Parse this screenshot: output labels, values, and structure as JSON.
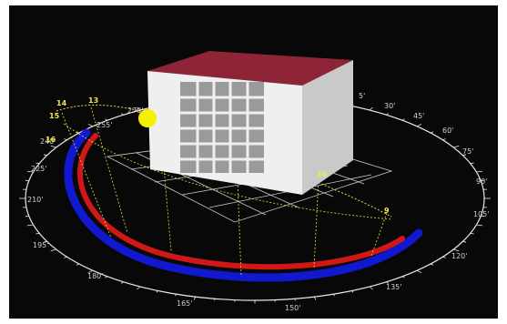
{
  "viewport": {
    "background": "#080808",
    "ring_color": "#e8e8e8",
    "path_color": "#e8e03a",
    "sun_color": "#f4f000",
    "outer_band_color": "#1018d0",
    "inner_band_color": "#d01818",
    "roof_color": "#8e2436",
    "wall_front_color": "#efefef",
    "wall_side_color": "#c9c9c9"
  },
  "compass_labels": [
    "5'",
    "30'",
    "45'",
    "60'",
    "75'",
    "90'",
    "105'",
    "120'",
    "135'",
    "150'",
    "165'",
    "180'",
    "195'",
    "210'",
    "225'",
    "240'",
    "255'",
    "270'"
  ],
  "hour_labels": [
    "14",
    "13",
    "15",
    "16",
    "10",
    "9"
  ],
  "sun": {
    "icon": "sun-icon"
  }
}
